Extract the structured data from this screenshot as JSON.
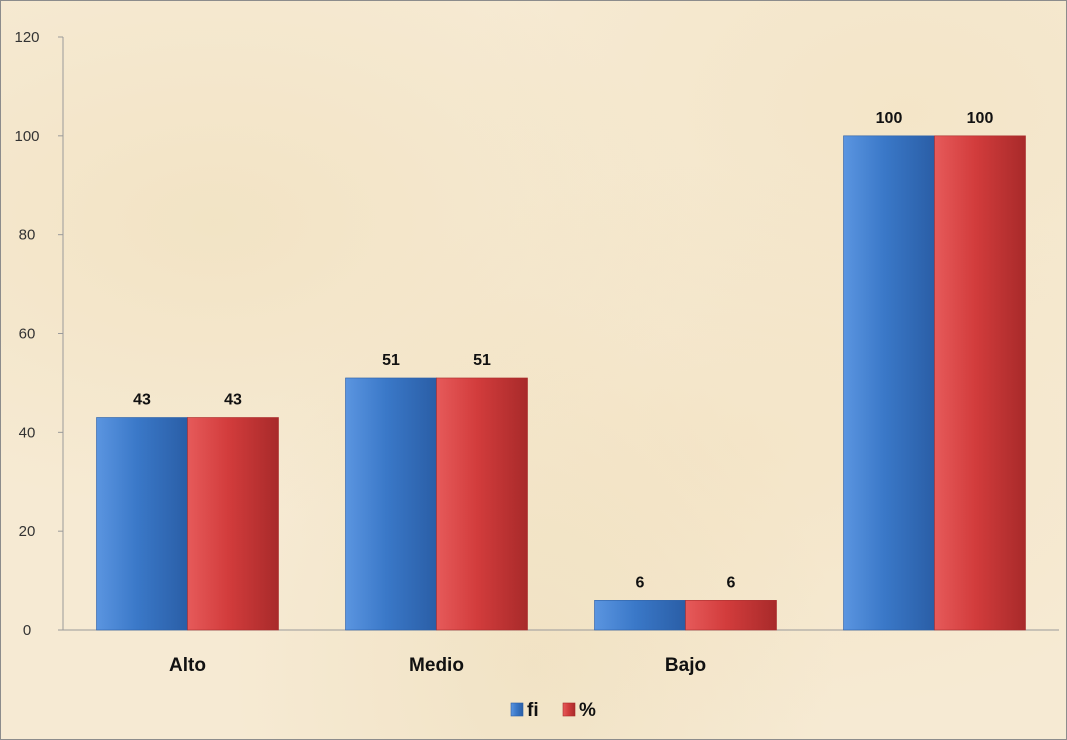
{
  "chart_data": {
    "type": "bar",
    "title": "",
    "xlabel": "",
    "ylabel": "",
    "categories": [
      "Alto",
      "Medio",
      "Bajo",
      ""
    ],
    "series": [
      {
        "name": "fi",
        "values": [
          43,
          51,
          6,
          100
        ],
        "color": "#3a78c8"
      },
      {
        "name": "%",
        "values": [
          43,
          51,
          6,
          100
        ],
        "color": "#d23c3c"
      }
    ],
    "ylim": [
      0,
      120
    ],
    "yticks": [
      0,
      20,
      40,
      60,
      80,
      100,
      120
    ],
    "grid": false,
    "legend_position": "bottom-center",
    "data_labels": true
  }
}
